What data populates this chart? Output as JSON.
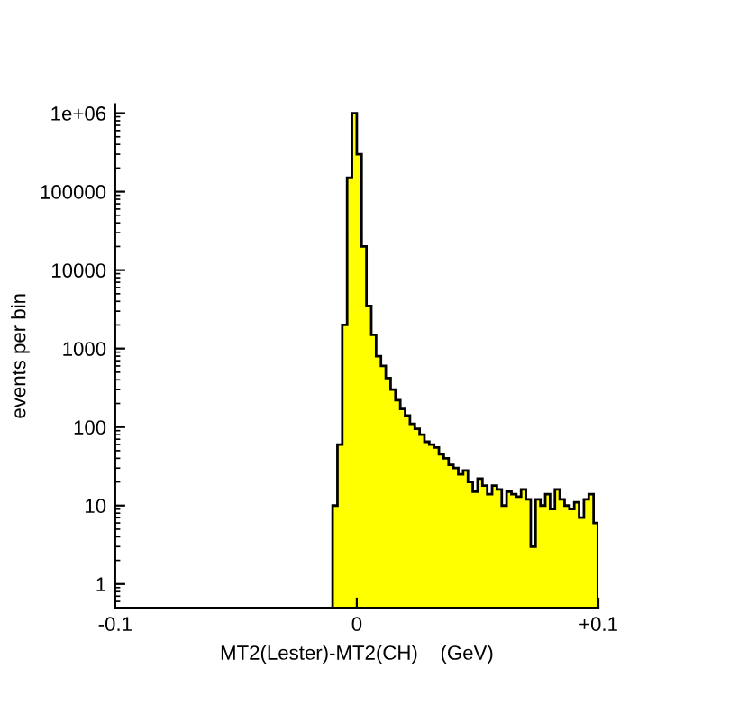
{
  "chart_data": {
    "type": "histogram",
    "xlabel": "MT2(Lester)-MT2(CH)    (GeV)",
    "ylabel": "events per bin",
    "bins": [
      -0.01,
      -0.008,
      -0.006,
      -0.004,
      -0.002,
      0.0,
      0.002,
      0.004,
      0.006,
      0.008,
      0.01,
      0.012,
      0.014,
      0.016,
      0.018,
      0.02,
      0.022,
      0.024,
      0.026,
      0.028,
      0.03,
      0.032,
      0.034,
      0.036,
      0.038,
      0.04,
      0.042,
      0.044,
      0.046,
      0.048,
      0.05,
      0.052,
      0.054,
      0.056,
      0.058,
      0.06,
      0.062,
      0.064,
      0.066,
      0.068,
      0.07,
      0.072,
      0.074,
      0.076,
      0.078,
      0.08,
      0.082,
      0.084,
      0.086,
      0.088,
      0.09,
      0.092,
      0.094,
      0.096,
      0.098,
      0.1
    ],
    "values": [
      10,
      60,
      2000,
      150000,
      1000000,
      300000,
      20000,
      3500,
      1500,
      800,
      600,
      420,
      300,
      220,
      170,
      140,
      110,
      95,
      80,
      65,
      60,
      55,
      45,
      40,
      33,
      30,
      25,
      28,
      20,
      15,
      22,
      18,
      14,
      18,
      16,
      10,
      15,
      14,
      13,
      16,
      12,
      3,
      12,
      10,
      14,
      9,
      16,
      12,
      10,
      9,
      11,
      7,
      12,
      14,
      6
    ],
    "color": "#ffff00",
    "log": "y",
    "xlim": [
      -0.1,
      0.1
    ],
    "xticks": [
      {
        "value": -0.1,
        "label": "-0.1"
      },
      0,
      {
        "value": 0.1,
        "label": "+0.1"
      }
    ],
    "ylim": [
      0.5,
      1300000
    ],
    "yticks": [
      1,
      10,
      100,
      1000,
      10000,
      100000,
      {
        "value": 1000000,
        "label": "1e+06"
      }
    ],
    "grid": false,
    "legend": false
  }
}
